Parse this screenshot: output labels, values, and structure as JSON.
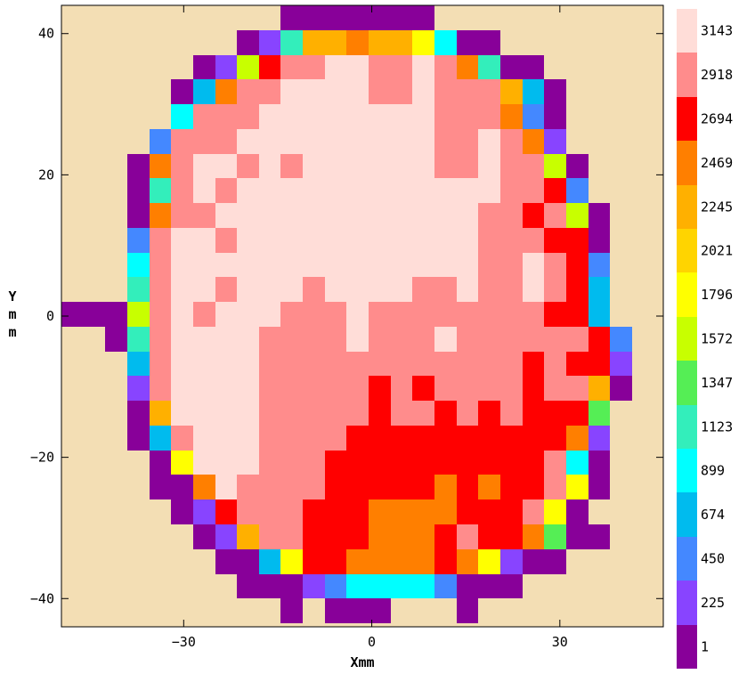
{
  "chart_data": {
    "type": "heatmap",
    "title": "",
    "xlabel": "Xmm",
    "ylabel": "Ymm",
    "xlim": [
      -49.5,
      46.5
    ],
    "ylim": [
      -44,
      44
    ],
    "x_ticks": [
      {
        "value": -30,
        "label": "−30"
      },
      {
        "value": 0,
        "label": "0"
      },
      {
        "value": 30,
        "label": "30"
      }
    ],
    "y_ticks": [
      {
        "value": 40,
        "label": "40"
      },
      {
        "value": 20,
        "label": "20"
      },
      {
        "value": 0,
        "label": "0"
      },
      {
        "value": -20,
        "label": "−20"
      },
      {
        "value": -40,
        "label": "−40"
      }
    ],
    "background_color": "#F3DEB4",
    "grid": false,
    "cell_size_mm": 3.5,
    "x_origin_mm": -49.5,
    "y_top_mm": 44,
    "colorbar": {
      "position": "right",
      "levels": [
        {
          "label": "3143",
          "color": "#FFDDD8"
        },
        {
          "label": "2918",
          "color": "#FF8C8C"
        },
        {
          "label": "2694",
          "color": "#FF0000"
        },
        {
          "label": "2469",
          "color": "#FF7F00"
        },
        {
          "label": "2245",
          "color": "#FFB000"
        },
        {
          "label": "2021",
          "color": "#FFD400"
        },
        {
          "label": "1796",
          "color": "#FFFF00"
        },
        {
          "label": "1572",
          "color": "#C8FF00"
        },
        {
          "label": "1347",
          "color": "#55EE55"
        },
        {
          "label": "1123",
          "color": "#33EEBB"
        },
        {
          "label": "899",
          "color": "#00FFFF"
        },
        {
          "label": "674",
          "color": "#00BBEE"
        },
        {
          "label": "450",
          "color": "#4488FF"
        },
        {
          "label": "225",
          "color": "#8844FF"
        },
        {
          "label": "1",
          "color": "#880099"
        }
      ]
    },
    "legend_key": "V=3143 W=2918 R=2694 O=2469 A=2245 Y=2021 L=1796 G=1572 E=1347 T=1123 C=899 S=674 B=450 P=225 M=1 .=no data",
    "rows": [
      "..........MMMMMMM.......",
      "........MPTAAOAALCMM....",
      "......MPGRWWVVWWVWOTMM...",
      ".....MSOWWVVVVWWVWWWASM..",
      ".....CWWWVVVVVVVVWWWOBM..",
      "....BWWWVVVVVVVVVWWVWOP..",
      "...MOWVVWVWVVVVVVWWVWWGM.",
      "...MTWVWVVVVVVVVVVVVWWRB.",
      "...MOWWVVVVVVVVVVVVWWRWGM",
      "...BWVVWVVVVVVVVVVVWWWRRM",
      "...CWVVVVVVVVVVVVVVWWVWRB",
      "...TWVVWVVVWVVVVWWVWWVWRS",
      "MMMGWVWVVVWWWVWWWWWWWWRRS",
      "..MTWVVVVWWWWVWWWVWWWWWWRB",
      "...SWVVVVWWWWWWWWWWWWRWRRP",
      "...PWVVVVWWWWWRWRWWWWRWWAM",
      "...MAVVVVWWWWWRWWRWRWRRRE",
      "...MSWVVVWWWWRRRRRRRRRROP",
      "....MLVVVWWWRRRRRRRRRRWCM",
      "....MMOVWWWWRRRRRORORRWLM",
      ".....MPRWWWRRROOOORRRWLM",
      "......MPAWWRRROOORWRROEMM",
      ".......MMSLRROOOOROLPMM",
      "........MMMPBCCCCBMMM",
      "..........M.MMM...M"
    ]
  }
}
